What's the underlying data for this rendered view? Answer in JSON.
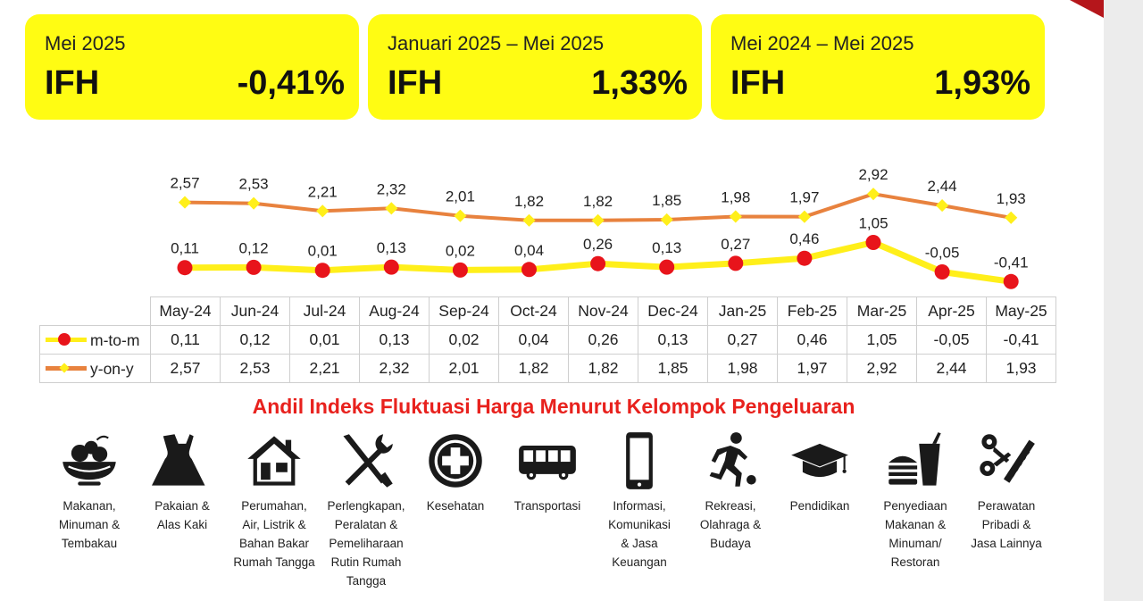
{
  "cards": [
    {
      "period": "Mei 2025",
      "label": "IFH",
      "value": "-0,41%"
    },
    {
      "period": "Januari 2025 – Mei 2025",
      "label": "IFH",
      "value": "1,33%"
    },
    {
      "period": "Mei 2024 – Mei 2025",
      "label": "IFH",
      "value": "1,93%"
    }
  ],
  "chart_data": {
    "type": "line",
    "categories": [
      "May-24",
      "Jun-24",
      "Jul-24",
      "Aug-24",
      "Sep-24",
      "Oct-24",
      "Nov-24",
      "Dec-24",
      "Jan-25",
      "Feb-25",
      "Mar-25",
      "Apr-25",
      "May-25"
    ],
    "series": [
      {
        "name": "m-to-m",
        "values": [
          0.11,
          0.12,
          0.01,
          0.13,
          0.02,
          0.04,
          0.26,
          0.13,
          0.27,
          0.46,
          1.05,
          -0.05,
          -0.41
        ],
        "labels": [
          "0,11",
          "0,12",
          "0,01",
          "0,13",
          "0,02",
          "0,04",
          "0,26",
          "0,13",
          "0,27",
          "0,46",
          "1,05",
          "-0,05",
          "-0,41"
        ],
        "line_color": "#ffef1a",
        "marker_color": "#e8141b"
      },
      {
        "name": "y-on-y",
        "values": [
          2.57,
          2.53,
          2.21,
          2.32,
          2.01,
          1.82,
          1.82,
          1.85,
          1.98,
          1.97,
          2.92,
          2.44,
          1.93
        ],
        "labels": [
          "2,57",
          "2,53",
          "2,21",
          "2,32",
          "2,01",
          "1,82",
          "1,82",
          "1,85",
          "1,98",
          "1,97",
          "2,92",
          "2,44",
          "1,93"
        ],
        "line_color": "#e8823e",
        "marker_color": "#ffef1a"
      }
    ],
    "data_table": true,
    "grid": false
  },
  "section_title": "Andil Indeks Fluktuasi Harga Menurut Kelompok Pengeluaran",
  "categories": [
    {
      "icon": "fruit-bowl-icon",
      "lines": [
        "Makanan,",
        "Minuman &",
        "Tembakau"
      ]
    },
    {
      "icon": "dress-icon",
      "lines": [
        "Pakaian &",
        "Alas Kaki"
      ]
    },
    {
      "icon": "house-icon",
      "lines": [
        "Perumahan,",
        "Air, Listrik &",
        "Bahan Bakar",
        "Rumah Tangga"
      ]
    },
    {
      "icon": "tools-icon",
      "lines": [
        "Perlengkapan,",
        "Peralatan &",
        "Pemeliharaan",
        "Rutin Rumah",
        "Tangga"
      ]
    },
    {
      "icon": "medical-cross-icon",
      "lines": [
        "Kesehatan"
      ]
    },
    {
      "icon": "bus-icon",
      "lines": [
        "Transportasi"
      ]
    },
    {
      "icon": "phone-icon",
      "lines": [
        "Informasi,",
        "Komunikasi",
        "& Jasa",
        "Keuangan"
      ]
    },
    {
      "icon": "runner-icon",
      "lines": [
        "Rekreasi,",
        "Olahraga &",
        "Budaya"
      ]
    },
    {
      "icon": "graduation-cap-icon",
      "lines": [
        "Pendidikan"
      ]
    },
    {
      "icon": "fast-food-icon",
      "lines": [
        "Penyediaan",
        "Makanan &",
        "Minuman/",
        "Restoran"
      ]
    },
    {
      "icon": "scissors-comb-icon",
      "lines": [
        "Perawatan",
        "Pribadi &",
        "Jasa Lainnya"
      ]
    }
  ]
}
